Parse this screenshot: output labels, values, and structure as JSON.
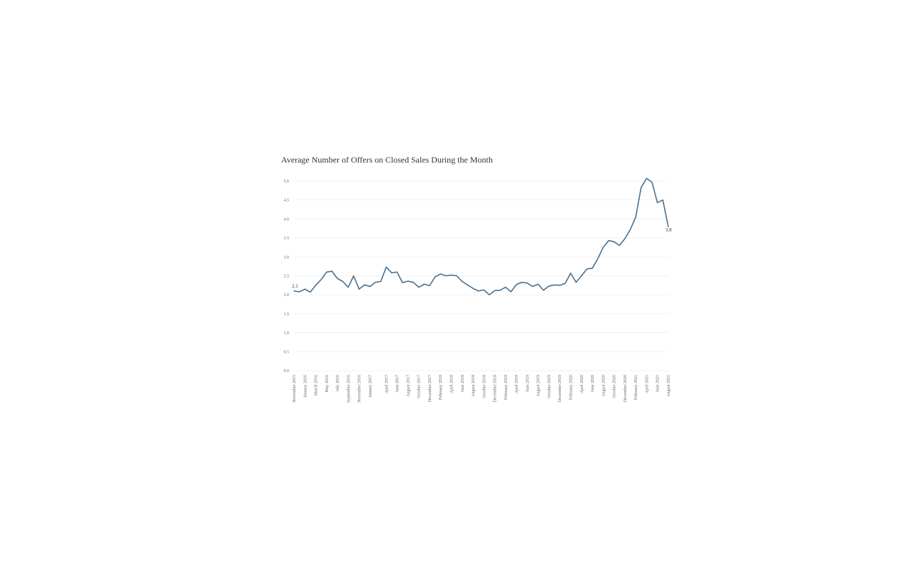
{
  "chart_data": {
    "type": "line",
    "title": "Average Number of Offers on Closed Sales During the Month",
    "xlabel": "",
    "ylabel": "",
    "ylim": [
      0,
      5
    ],
    "yticks": [
      "0.0",
      "0.5",
      "1.0",
      "1.5",
      "2.0",
      "2.5",
      "3.0",
      "3.5",
      "4.0",
      "4.5",
      "5.0"
    ],
    "grid": true,
    "x": [
      "November 2015",
      "December 2015",
      "January 2016",
      "February 2016",
      "March 2016",
      "April 2016",
      "May 2016",
      "June 2016",
      "July 2016",
      "August 2016",
      "September 2016",
      "October 2016",
      "November 2016",
      "December 2016",
      "January 2017",
      "February 2017",
      "March 2017",
      "April 2017",
      "May 2017",
      "June 2017",
      "July 2017",
      "August 2017",
      "September 2017",
      "October 2017",
      "November 2017",
      "December 2017",
      "January 2018",
      "February 2018",
      "March 2018",
      "April 2018",
      "May 2018",
      "June 2018",
      "July 2018",
      "August 2018",
      "September 2018",
      "October 2018",
      "November 2018",
      "December 2018",
      "January 2019",
      "February 2019",
      "March 2019",
      "April 2019",
      "May 2019",
      "June 2019",
      "July 2019",
      "August 2019",
      "September 2019",
      "October 2019",
      "November 2019",
      "December 2019",
      "January 2020",
      "February 2020",
      "March 2020",
      "April 2020",
      "May 2020",
      "June 2020",
      "July 2020",
      "August 2020",
      "September 2020",
      "October 2020",
      "November 2020",
      "December 2020",
      "January 2021",
      "February 2021",
      "March 2021",
      "April 2021",
      "May 2021",
      "June 2021",
      "July 2021",
      "August 2021"
    ],
    "tick_labels": [
      "November 2015",
      "January 2016",
      "March 2016",
      "May 2016",
      "July 2016",
      "September 2016",
      "November 2016",
      "January 2017",
      "April 2017",
      "June 2017",
      "August 2017",
      "October 2017",
      "December 2017",
      "February 2018",
      "April 2018",
      "June 2018",
      "August 2018",
      "October 2018",
      "December 2018",
      "February 2019",
      "April 2019",
      "June 2019",
      "August 2019",
      "October 2019",
      "December 2019",
      "February 2020",
      "April 2020",
      "June 2020",
      "August 2020",
      "October 2020",
      "December 2020",
      "February 2021",
      "April 2021",
      "June 2021",
      "August 2021"
    ],
    "series": [
      {
        "color": "#4a6f8e",
        "values": [
          2.1,
          2.08,
          2.15,
          2.07,
          2.25,
          2.4,
          2.6,
          2.62,
          2.43,
          2.35,
          2.2,
          2.5,
          2.15,
          2.26,
          2.22,
          2.33,
          2.35,
          2.73,
          2.58,
          2.6,
          2.32,
          2.36,
          2.33,
          2.2,
          2.28,
          2.24,
          2.47,
          2.55,
          2.5,
          2.52,
          2.5,
          2.35,
          2.26,
          2.17,
          2.1,
          2.13,
          2.0,
          2.11,
          2.12,
          2.2,
          2.08,
          2.27,
          2.33,
          2.31,
          2.22,
          2.28,
          2.12,
          2.23,
          2.26,
          2.25,
          2.3,
          2.57,
          2.33,
          2.5,
          2.68,
          2.7,
          2.95,
          3.25,
          3.43,
          3.4,
          3.3,
          3.48,
          3.72,
          4.05,
          4.83,
          5.07,
          4.97,
          4.43,
          4.5,
          3.8
        ]
      }
    ],
    "data_labels": [
      {
        "index": 0,
        "text": "2.1"
      },
      {
        "index": 69,
        "text": "3.8"
      }
    ]
  }
}
